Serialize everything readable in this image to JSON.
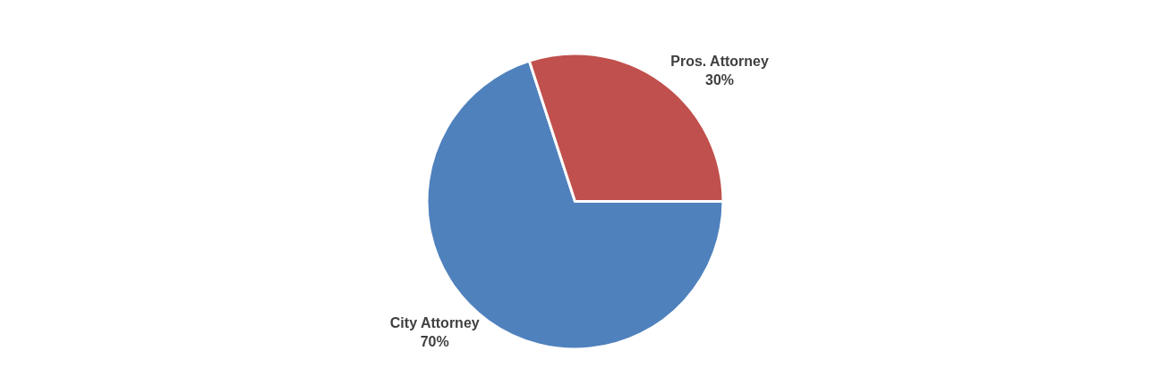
{
  "chart_data": {
    "type": "pie",
    "categories": [
      "City Attorney",
      "Pros. Attorney"
    ],
    "values": [
      70,
      30
    ],
    "value_labels": [
      "70%",
      "30%"
    ],
    "colors": [
      "#4f81bd",
      "#c0504d"
    ],
    "legend": false
  }
}
